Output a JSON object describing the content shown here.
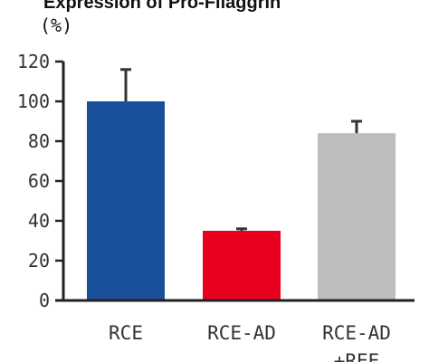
{
  "chart_data": {
    "type": "bar",
    "title": "Expression of Pro-Filaggrin",
    "unit_label": "(%)",
    "xlabel": "",
    "ylabel": "",
    "ylim": [
      0,
      120
    ],
    "yticks": [
      "0",
      "20",
      "40",
      "60",
      "80",
      "100",
      "120"
    ],
    "categories": [
      {
        "line1": "RCE",
        "line2": ""
      },
      {
        "line1": "RCE-AD",
        "line2": ""
      },
      {
        "line1": "RCE-AD",
        "line2": "+REE"
      }
    ],
    "values": [
      100,
      35,
      84
    ],
    "errors": [
      16,
      1,
      6
    ],
    "colors": [
      "#1a4f9a",
      "#e8001e",
      "#bdbdbd"
    ],
    "grid": false,
    "legend": "none"
  }
}
